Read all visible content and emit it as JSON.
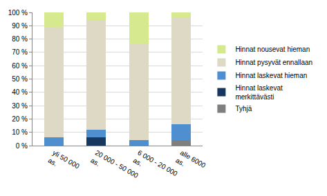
{
  "chart_data": {
    "type": "bar",
    "stacked": true,
    "categories": [
      "yli 50 000 as.",
      "20 000 - 50 000 as.",
      "6 000 - 20 000 as.",
      "alle 6000 as."
    ],
    "series": [
      {
        "name": "Tyhjä",
        "color": "#7f7f7f",
        "values": [
          0,
          0,
          0,
          4
        ]
      },
      {
        "name": "Hinnat laskevat merkittävästi",
        "color": "#17375e",
        "values": [
          0,
          6,
          0,
          0
        ]
      },
      {
        "name": "Hinnat laskevat hieman",
        "color": "#4f8fd0",
        "values": [
          6,
          6,
          4,
          12
        ]
      },
      {
        "name": "Hinnat pysyvät ennallaan",
        "color": "#ddd9c4",
        "values": [
          83,
          82,
          72,
          80
        ]
      },
      {
        "name": "Hinnat nousevat hieman",
        "color": "#d7e98f",
        "values": [
          11,
          6,
          24,
          4
        ]
      }
    ],
    "ylim": [
      0,
      100
    ],
    "yticks": [
      {
        "value": 0,
        "label": "0 %"
      },
      {
        "value": 10,
        "label": "10 %"
      },
      {
        "value": 20,
        "label": "20 %"
      },
      {
        "value": 30,
        "label": "30 %"
      },
      {
        "value": 40,
        "label": "40 %"
      },
      {
        "value": 50,
        "label": "50 %"
      },
      {
        "value": 60,
        "label": "60 %"
      },
      {
        "value": 70,
        "label": "70 %"
      },
      {
        "value": 80,
        "label": "80 %"
      },
      {
        "value": 90,
        "label": "90 %"
      },
      {
        "value": 100,
        "label": "100 %"
      }
    ],
    "grid": true,
    "legend": "right"
  }
}
